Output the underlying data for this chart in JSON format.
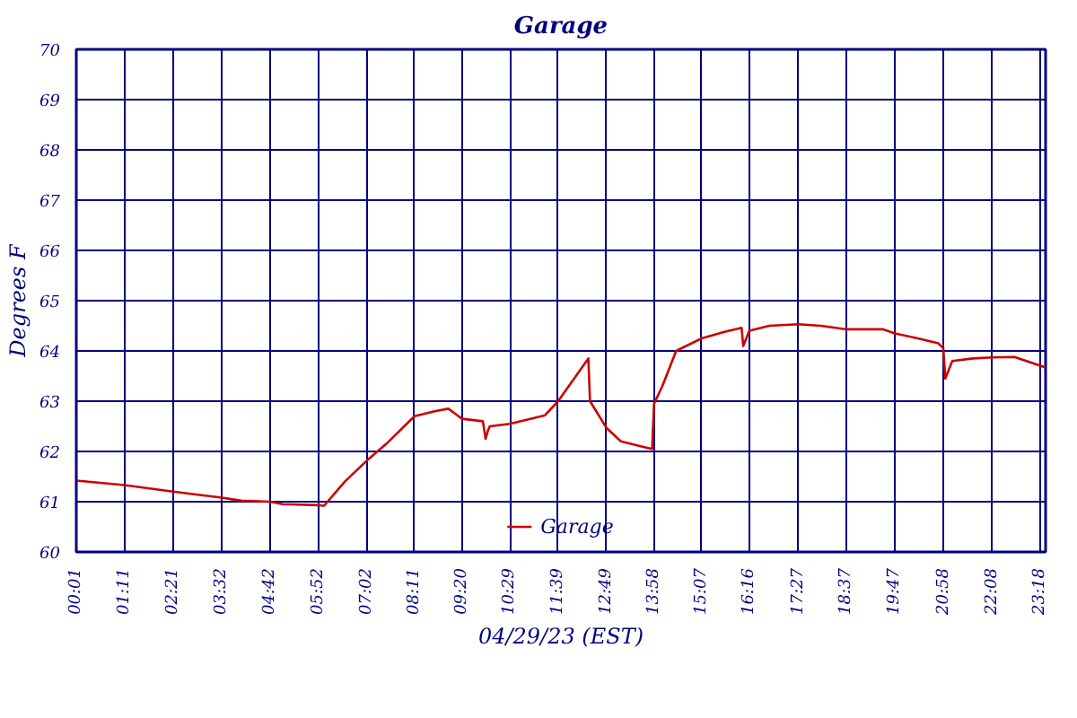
{
  "chart_data": {
    "type": "line",
    "title": "Garage",
    "xlabel": "04/29/23 (EST)",
    "ylabel": "Degrees F",
    "xlim": [
      0.0167,
      23.42
    ],
    "ylim": [
      60,
      70
    ],
    "xticks": [
      {
        "value": 0.0167,
        "label": "00:01"
      },
      {
        "value": 1.1833,
        "label": "01:11"
      },
      {
        "value": 2.35,
        "label": "02:21"
      },
      {
        "value": 3.5333,
        "label": "03:32"
      },
      {
        "value": 4.7,
        "label": "04:42"
      },
      {
        "value": 5.8667,
        "label": "05:52"
      },
      {
        "value": 7.0333,
        "label": "07:02"
      },
      {
        "value": 8.1833,
        "label": "08:11"
      },
      {
        "value": 9.3333,
        "label": "09:20"
      },
      {
        "value": 10.4833,
        "label": "10:29"
      },
      {
        "value": 11.65,
        "label": "11:39"
      },
      {
        "value": 12.8167,
        "label": "12:49"
      },
      {
        "value": 13.9667,
        "label": "13:58"
      },
      {
        "value": 15.1167,
        "label": "15:07"
      },
      {
        "value": 16.2667,
        "label": "16:16"
      },
      {
        "value": 17.45,
        "label": "17:27"
      },
      {
        "value": 18.6167,
        "label": "18:37"
      },
      {
        "value": 19.7833,
        "label": "19:47"
      },
      {
        "value": 20.9667,
        "label": "20:58"
      },
      {
        "value": 22.1333,
        "label": "22:08"
      },
      {
        "value": 23.3,
        "label": "23:18"
      },
      {
        "value": 23.42,
        "label": null
      }
    ],
    "yticks": [
      60,
      61,
      62,
      63,
      64,
      65,
      66,
      67,
      68,
      69,
      70
    ],
    "grid": true,
    "legend": "bottom",
    "marker": "none",
    "line_style": "solid",
    "x": [
      0.0167,
      1.1833,
      2.35,
      3.5333,
      4.0,
      4.7,
      5.0,
      5.8667,
      6.0,
      6.5,
      7.0333,
      7.5,
      8.1833,
      8.6667,
      9.0,
      9.3333,
      9.8333,
      9.9,
      9.95,
      10.0,
      10.4833,
      11.0,
      11.3333,
      11.65,
      12.38,
      12.42,
      12.8167,
      13.1667,
      13.6667,
      13.92,
      13.9667,
      14.1667,
      14.5,
      15.1167,
      15.6667,
      16.08,
      16.12,
      16.2667,
      16.75,
      17.45,
      18.0,
      18.6167,
      19.5,
      19.7833,
      20.3333,
      20.8333,
      20.95,
      21.0,
      21.1667,
      21.6667,
      22.1333,
      22.6667,
      23.42
    ],
    "series": [
      {
        "name": "Garage",
        "color": "#cc0000",
        "values": [
          61.42,
          61.33,
          61.2,
          61.08,
          61.02,
          61.0,
          60.95,
          60.93,
          60.92,
          61.4,
          61.82,
          62.15,
          62.7,
          62.8,
          62.85,
          62.65,
          62.6,
          62.25,
          62.4,
          62.5,
          62.55,
          62.65,
          62.72,
          63.0,
          63.85,
          63.0,
          62.47,
          62.2,
          62.1,
          62.05,
          62.95,
          63.3,
          64.0,
          64.25,
          64.38,
          64.46,
          64.1,
          64.4,
          64.5,
          64.53,
          64.5,
          64.43,
          64.43,
          64.35,
          64.25,
          64.15,
          64.05,
          63.45,
          63.8,
          63.85,
          63.87,
          63.88,
          63.67
        ]
      }
    ]
  }
}
